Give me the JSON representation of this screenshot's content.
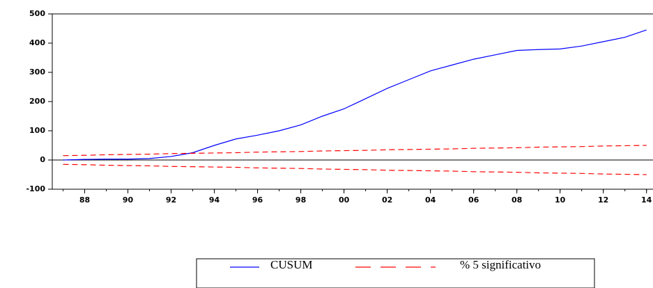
{
  "chart_data": {
    "type": "line",
    "x": [
      1987,
      1988,
      1989,
      1990,
      1991,
      1992,
      1993,
      1994,
      1995,
      1996,
      1997,
      1998,
      1999,
      2000,
      2001,
      2002,
      2003,
      2004,
      2005,
      2006,
      2007,
      2008,
      2009,
      2010,
      2011,
      2012,
      2013,
      2014
    ],
    "series": [
      {
        "name": "CUSUM",
        "color": "#0000ff",
        "dash": false,
        "values": [
          0,
          2,
          3,
          3,
          5,
          12,
          25,
          50,
          72,
          85,
          100,
          120,
          150,
          175,
          210,
          245,
          275,
          305,
          325,
          345,
          360,
          375,
          378,
          380,
          390,
          405,
          420,
          445
        ]
      },
      {
        "name": "% 5 significativo",
        "color": "#ff0000",
        "dash": true,
        "values": [
          15,
          16,
          18,
          19,
          20,
          22,
          23,
          24,
          25,
          27,
          28,
          29,
          31,
          32,
          33,
          35,
          36,
          37,
          38,
          40,
          41,
          42,
          44,
          45,
          46,
          48,
          49,
          50
        ],
        "lower": [
          -15,
          -16,
          -18,
          -19,
          -20,
          -22,
          -23,
          -24,
          -25,
          -27,
          -28,
          -29,
          -31,
          -32,
          -33,
          -35,
          -36,
          -37,
          -38,
          -40,
          -41,
          -42,
          -44,
          -45,
          -46,
          -48,
          -49,
          -50
        ]
      }
    ],
    "xlim": [
      1986.5,
      2014.3
    ],
    "xticks": [
      {
        "value": 1988,
        "label": "88"
      },
      {
        "value": 1990,
        "label": "90"
      },
      {
        "value": 1992,
        "label": "92"
      },
      {
        "value": 1994,
        "label": "94"
      },
      {
        "value": 1996,
        "label": "96"
      },
      {
        "value": 1998,
        "label": "98"
      },
      {
        "value": 2000,
        "label": "00"
      },
      {
        "value": 2002,
        "label": "02"
      },
      {
        "value": 2004,
        "label": "04"
      },
      {
        "value": 2006,
        "label": "06"
      },
      {
        "value": 2008,
        "label": "08"
      },
      {
        "value": 2010,
        "label": "10"
      },
      {
        "value": 2012,
        "label": "12"
      },
      {
        "value": 2014,
        "label": "14"
      }
    ],
    "ylim": [
      -100,
      500
    ],
    "yticks": [
      -100,
      0,
      100,
      200,
      300,
      400,
      500
    ]
  }
}
